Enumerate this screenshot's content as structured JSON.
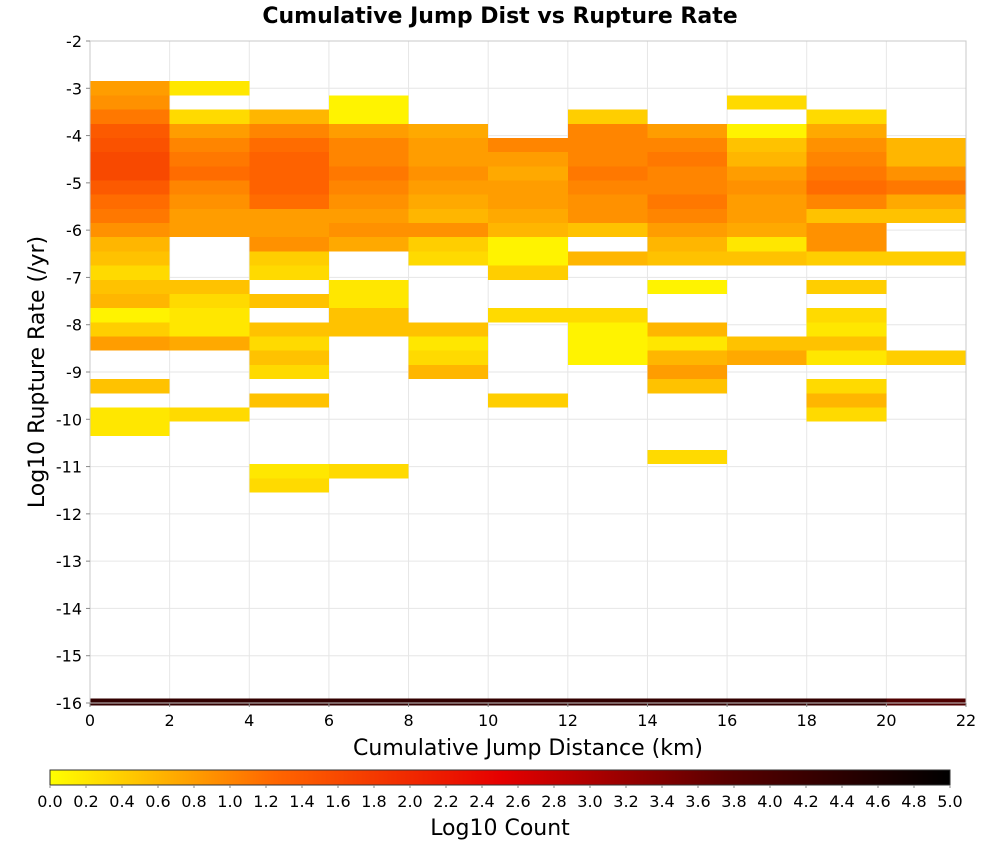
{
  "chart_data": {
    "type": "heatmap",
    "title": "Cumulative Jump Dist vs Rupture Rate",
    "xlabel": "Cumulative Jump Distance (km)",
    "ylabel": "Log10 Rupture Rate (/yr)",
    "colorbar_label": "Log10 Count",
    "xlim": [
      0,
      22
    ],
    "ylim": [
      -16,
      -2
    ],
    "x_ticks": [
      "0",
      "2",
      "4",
      "6",
      "8",
      "10",
      "12",
      "14",
      "16",
      "18",
      "20",
      "22"
    ],
    "y_ticks": [
      "-2",
      "-3",
      "-4",
      "-5",
      "-6",
      "-7",
      "-8",
      "-9",
      "-10",
      "-11",
      "-12",
      "-13",
      "-14",
      "-15",
      "-16"
    ],
    "colorbar_range": [
      0.0,
      5.0
    ],
    "colorbar_ticks": [
      "0.0",
      "0.2",
      "0.4",
      "0.6",
      "0.8",
      "1.0",
      "1.2",
      "1.4",
      "1.6",
      "1.8",
      "2.0",
      "2.2",
      "2.4",
      "2.6",
      "2.8",
      "3.0",
      "3.2",
      "3.4",
      "3.6",
      "3.8",
      "4.0",
      "4.2",
      "4.4",
      "4.6",
      "4.8",
      "5.0"
    ],
    "colormap": [
      "#ffff00",
      "#ff6600",
      "#e60000",
      "#5a0000",
      "#000000"
    ],
    "grid": true,
    "x_bin_width": 2,
    "y_bin_height": 0.3,
    "cells": [
      [
        0,
        -3.0,
        0.8
      ],
      [
        0,
        -3.3,
        0.9
      ],
      [
        0,
        -3.6,
        1.1
      ],
      [
        0,
        -3.9,
        1.4
      ],
      [
        0,
        -4.2,
        1.5
      ],
      [
        0,
        -4.5,
        1.6
      ],
      [
        0,
        -4.8,
        1.6
      ],
      [
        0,
        -5.1,
        1.4
      ],
      [
        0,
        -5.4,
        1.2
      ],
      [
        0,
        -5.7,
        1.1
      ],
      [
        0,
        -6.0,
        0.9
      ],
      [
        0,
        -6.3,
        0.6
      ],
      [
        0,
        -6.6,
        0.5
      ],
      [
        0,
        -6.9,
        0.3
      ],
      [
        0,
        -7.2,
        0.5
      ],
      [
        0,
        -7.5,
        0.6
      ],
      [
        0,
        -7.8,
        0.1
      ],
      [
        0,
        -8.1,
        0.4
      ],
      [
        0,
        -8.4,
        0.8
      ],
      [
        0,
        -9.3,
        0.5
      ],
      [
        0,
        -9.9,
        0.2
      ],
      [
        0,
        -10.2,
        0.2
      ],
      [
        2,
        -3.0,
        0.2
      ],
      [
        2,
        -3.6,
        0.3
      ],
      [
        2,
        -3.9,
        0.8
      ],
      [
        2,
        -4.2,
        1.0
      ],
      [
        2,
        -4.5,
        1.1
      ],
      [
        2,
        -4.8,
        1.2
      ],
      [
        2,
        -5.1,
        1.0
      ],
      [
        2,
        -5.4,
        0.9
      ],
      [
        2,
        -5.7,
        0.8
      ],
      [
        2,
        -6.0,
        0.8
      ],
      [
        2,
        -7.2,
        0.5
      ],
      [
        2,
        -7.5,
        0.3
      ],
      [
        2,
        -7.8,
        0.2
      ],
      [
        2,
        -8.1,
        0.2
      ],
      [
        2,
        -8.4,
        0.7
      ],
      [
        2,
        -9.9,
        0.3
      ],
      [
        4,
        -3.6,
        0.6
      ],
      [
        4,
        -3.9,
        1.0
      ],
      [
        4,
        -4.2,
        1.2
      ],
      [
        4,
        -4.5,
        1.3
      ],
      [
        4,
        -4.8,
        1.3
      ],
      [
        4,
        -5.1,
        1.3
      ],
      [
        4,
        -5.4,
        1.2
      ],
      [
        4,
        -5.7,
        0.8
      ],
      [
        4,
        -6.0,
        0.8
      ],
      [
        4,
        -6.3,
        0.9
      ],
      [
        4,
        -6.6,
        0.4
      ],
      [
        4,
        -6.9,
        0.3
      ],
      [
        4,
        -7.5,
        0.5
      ],
      [
        4,
        -8.1,
        0.5
      ],
      [
        4,
        -8.4,
        0.3
      ],
      [
        4,
        -8.7,
        0.5
      ],
      [
        4,
        -9.0,
        0.3
      ],
      [
        4,
        -9.6,
        0.5
      ],
      [
        4,
        -11.1,
        0.2
      ],
      [
        4,
        -11.4,
        0.3
      ],
      [
        6,
        -3.3,
        0.1
      ],
      [
        6,
        -3.6,
        0.1
      ],
      [
        6,
        -3.9,
        0.8
      ],
      [
        6,
        -4.2,
        1.0
      ],
      [
        6,
        -4.5,
        1.0
      ],
      [
        6,
        -4.8,
        1.1
      ],
      [
        6,
        -5.1,
        1.0
      ],
      [
        6,
        -5.4,
        0.9
      ],
      [
        6,
        -5.7,
        0.8
      ],
      [
        6,
        -6.0,
        0.9
      ],
      [
        6,
        -6.3,
        0.7
      ],
      [
        6,
        -7.2,
        0.2
      ],
      [
        6,
        -7.5,
        0.2
      ],
      [
        6,
        -7.8,
        0.5
      ],
      [
        6,
        -8.1,
        0.5
      ],
      [
        6,
        -11.1,
        0.3
      ],
      [
        8,
        -3.9,
        0.7
      ],
      [
        8,
        -4.2,
        0.8
      ],
      [
        8,
        -4.5,
        0.8
      ],
      [
        8,
        -4.8,
        0.9
      ],
      [
        8,
        -5.1,
        0.8
      ],
      [
        8,
        -5.4,
        0.7
      ],
      [
        8,
        -5.7,
        0.6
      ],
      [
        8,
        -6.0,
        0.9
      ],
      [
        8,
        -6.3,
        0.4
      ],
      [
        8,
        -6.6,
        0.3
      ],
      [
        8,
        -8.1,
        0.5
      ],
      [
        8,
        -8.4,
        0.2
      ],
      [
        8,
        -8.7,
        0.3
      ],
      [
        8,
        -9.0,
        0.6
      ],
      [
        10,
        -4.2,
        1.0
      ],
      [
        10,
        -4.5,
        0.8
      ],
      [
        10,
        -4.8,
        0.7
      ],
      [
        10,
        -5.1,
        0.8
      ],
      [
        10,
        -5.4,
        0.8
      ],
      [
        10,
        -5.7,
        0.7
      ],
      [
        10,
        -6.0,
        0.6
      ],
      [
        10,
        -6.3,
        0.1
      ],
      [
        10,
        -6.6,
        0.1
      ],
      [
        10,
        -6.9,
        0.4
      ],
      [
        10,
        -7.8,
        0.3
      ],
      [
        10,
        -9.6,
        0.4
      ],
      [
        12,
        -3.6,
        0.4
      ],
      [
        12,
        -3.9,
        1.0
      ],
      [
        12,
        -4.2,
        1.0
      ],
      [
        12,
        -4.5,
        1.0
      ],
      [
        12,
        -4.8,
        1.1
      ],
      [
        12,
        -5.1,
        1.0
      ],
      [
        12,
        -5.4,
        0.9
      ],
      [
        12,
        -5.7,
        0.9
      ],
      [
        12,
        -6.0,
        0.5
      ],
      [
        12,
        -6.6,
        0.6
      ],
      [
        12,
        -7.8,
        0.3
      ],
      [
        12,
        -8.1,
        0.1
      ],
      [
        12,
        -8.4,
        0.1
      ],
      [
        12,
        -8.7,
        0.1
      ],
      [
        14,
        -3.9,
        0.8
      ],
      [
        14,
        -4.2,
        1.0
      ],
      [
        14,
        -4.5,
        1.1
      ],
      [
        14,
        -4.8,
        1.0
      ],
      [
        14,
        -5.1,
        1.0
      ],
      [
        14,
        -5.4,
        1.1
      ],
      [
        14,
        -5.7,
        1.0
      ],
      [
        14,
        -6.0,
        0.8
      ],
      [
        14,
        -6.3,
        0.6
      ],
      [
        14,
        -6.6,
        0.5
      ],
      [
        14,
        -7.2,
        0.1
      ],
      [
        14,
        -8.1,
        0.6
      ],
      [
        14,
        -8.4,
        0.2
      ],
      [
        14,
        -8.7,
        0.6
      ],
      [
        14,
        -9.0,
        0.8
      ],
      [
        14,
        -9.3,
        0.5
      ],
      [
        14,
        -10.8,
        0.3
      ],
      [
        16,
        -3.3,
        0.3
      ],
      [
        16,
        -3.9,
        0.1
      ],
      [
        16,
        -4.2,
        0.5
      ],
      [
        16,
        -4.5,
        0.6
      ],
      [
        16,
        -4.8,
        0.8
      ],
      [
        16,
        -5.1,
        0.9
      ],
      [
        16,
        -5.4,
        0.8
      ],
      [
        16,
        -5.7,
        0.8
      ],
      [
        16,
        -6.0,
        0.7
      ],
      [
        16,
        -6.3,
        0.2
      ],
      [
        16,
        -6.6,
        0.5
      ],
      [
        16,
        -8.4,
        0.5
      ],
      [
        16,
        -8.7,
        0.7
      ],
      [
        18,
        -3.6,
        0.3
      ],
      [
        18,
        -3.9,
        0.7
      ],
      [
        18,
        -4.2,
        0.9
      ],
      [
        18,
        -4.5,
        1.0
      ],
      [
        18,
        -4.8,
        1.1
      ],
      [
        18,
        -5.1,
        1.2
      ],
      [
        18,
        -5.4,
        1.0
      ],
      [
        18,
        -5.7,
        0.5
      ],
      [
        18,
        -6.0,
        0.9
      ],
      [
        18,
        -6.3,
        0.9
      ],
      [
        18,
        -6.6,
        0.4
      ],
      [
        18,
        -7.2,
        0.4
      ],
      [
        18,
        -7.8,
        0.3
      ],
      [
        18,
        -8.1,
        0.2
      ],
      [
        18,
        -8.4,
        0.5
      ],
      [
        18,
        -8.7,
        0.2
      ],
      [
        18,
        -9.3,
        0.3
      ],
      [
        18,
        -9.6,
        0.6
      ],
      [
        18,
        -9.9,
        0.3
      ],
      [
        20,
        -4.2,
        0.6
      ],
      [
        20,
        -4.5,
        0.6
      ],
      [
        20,
        -4.8,
        0.9
      ],
      [
        20,
        -5.1,
        1.1
      ],
      [
        20,
        -5.4,
        0.7
      ],
      [
        20,
        -5.7,
        0.5
      ],
      [
        20,
        -6.6,
        0.4
      ],
      [
        20,
        -8.7,
        0.4
      ]
    ],
    "bottom_row": {
      "y": -16,
      "values": [
        4.3,
        4.3,
        4.3,
        4.3,
        4.3,
        4.3,
        4.3,
        4.3,
        4.3,
        4.3,
        3.9
      ]
    }
  }
}
